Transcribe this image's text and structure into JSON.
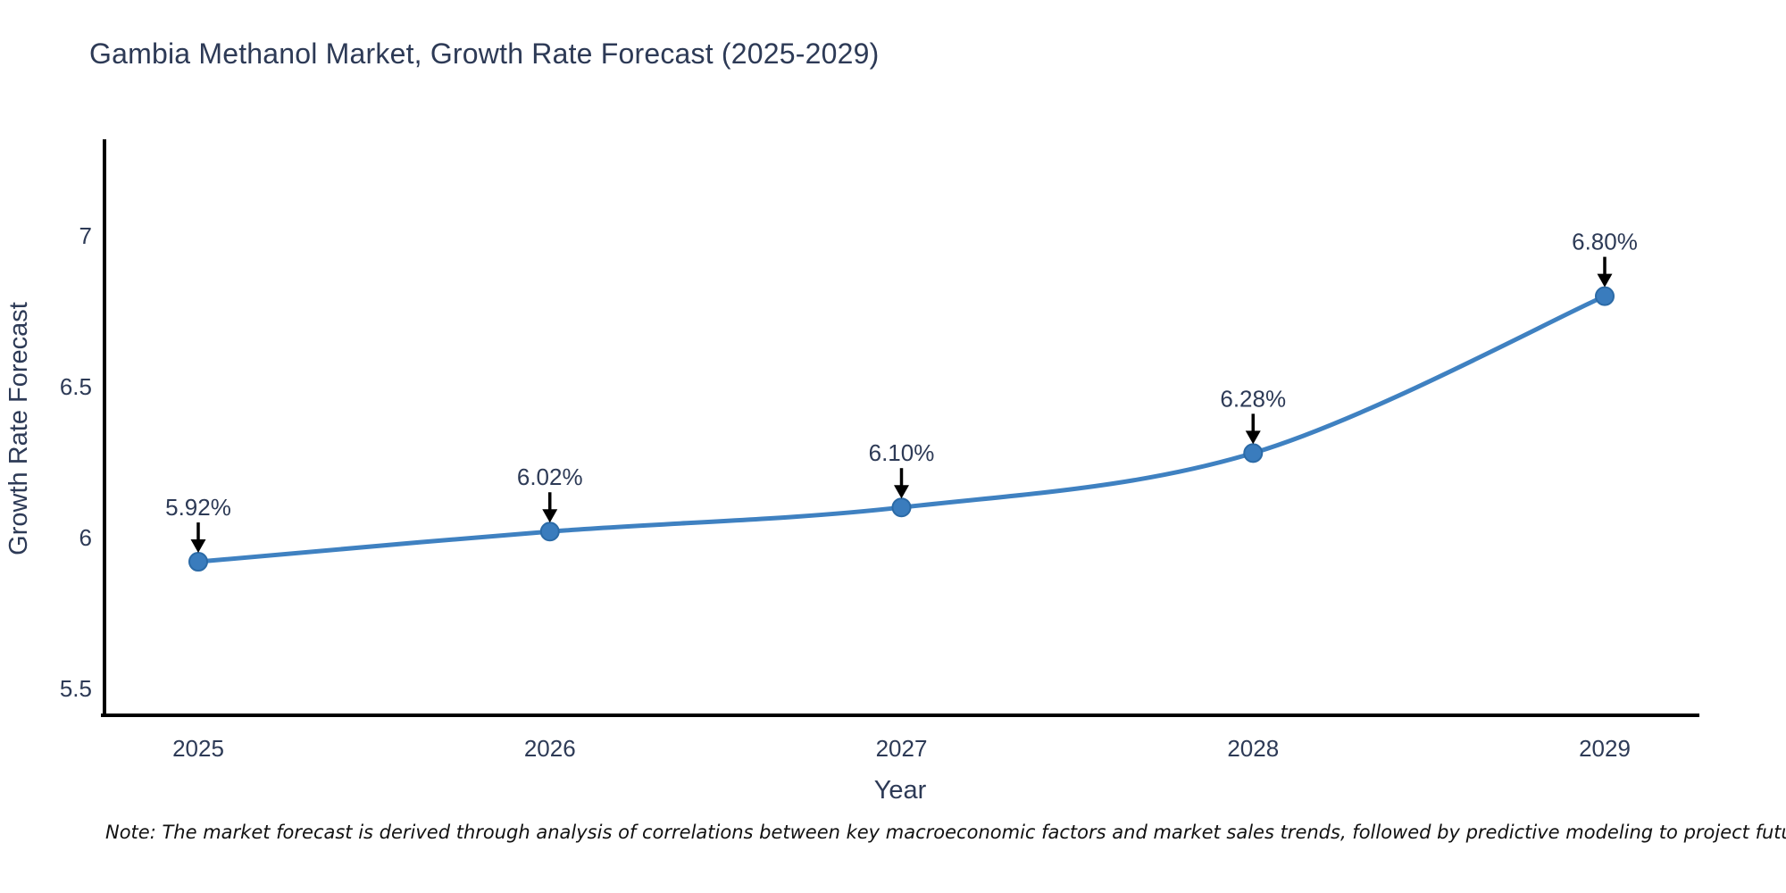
{
  "chart_data": {
    "type": "line",
    "title": "Gambia Methanol Market, Growth Rate Forecast (2025-2029)",
    "xlabel": "Year",
    "ylabel": "Growth Rate Forecast",
    "categories": [
      "2025",
      "2026",
      "2027",
      "2028",
      "2029"
    ],
    "values": [
      5.92,
      6.02,
      6.1,
      6.28,
      6.8
    ],
    "point_labels": [
      "5.92%",
      "6.02%",
      "6.10%",
      "6.28%",
      "6.80%"
    ],
    "yticks": [
      5.5,
      6,
      6.5,
      7
    ],
    "ytick_labels": [
      "5.5",
      "6",
      "6.5",
      "7"
    ],
    "ylim": [
      5.41,
      7.31
    ],
    "line_shape": "spline",
    "grid": false,
    "legend": "none",
    "colors": {
      "line": "#3f81c1",
      "marker": "#3a7cbd",
      "marker_stroke": "#2b6aa6",
      "arrow": "#000000",
      "text": "#2d3a56",
      "note": "#111111",
      "axis": "#000000",
      "background": "#ffffff"
    }
  },
  "note": {
    "text": "Note: The market forecast is derived through analysis of correlations between key macroeconomic factors and market sales trends, followed by predictive modeling to project future sales"
  }
}
